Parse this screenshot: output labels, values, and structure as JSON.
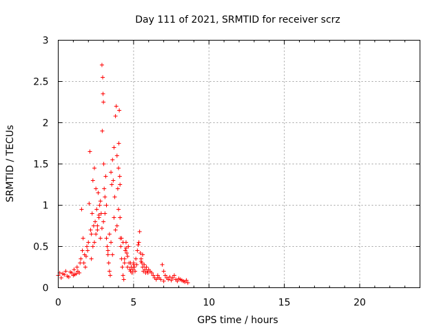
{
  "chart_data": {
    "type": "scatter",
    "title": "Day 111 of 2021, SRMTID for receiver scrz",
    "xlabel": "GPS time / hours",
    "ylabel": "SRMTID / TECUs",
    "xlim": [
      0,
      24
    ],
    "ylim": [
      0,
      3
    ],
    "xticks": [
      0,
      5,
      10,
      15,
      20
    ],
    "xtick_labels": [
      "0",
      "5",
      "10",
      "15",
      "20"
    ],
    "yticks": [
      0,
      0.5,
      1,
      1.5,
      2,
      2.5,
      3
    ],
    "ytick_labels": [
      "0",
      "0.5",
      "1",
      "1.5",
      "2",
      "2.5",
      "3"
    ],
    "grid": true,
    "marker": "+",
    "series": [
      {
        "name": "SRMTID",
        "color": "#ff0000",
        "x": [
          0.0,
          0.1,
          0.2,
          0.3,
          0.4,
          0.5,
          0.6,
          0.7,
          0.8,
          0.9,
          1.0,
          1.05,
          1.1,
          1.2,
          1.25,
          1.3,
          1.4,
          1.45,
          1.5,
          1.55,
          1.6,
          1.65,
          1.7,
          1.75,
          1.8,
          1.85,
          1.9,
          1.95,
          2.0,
          2.05,
          2.1,
          2.15,
          2.2,
          2.25,
          2.3,
          2.35,
          2.4,
          2.45,
          2.5,
          2.55,
          2.6,
          2.65,
          2.7,
          2.75,
          2.8,
          2.85,
          2.9,
          2.92,
          2.95,
          2.97,
          3.0,
          3.02,
          3.05,
          3.1,
          3.15,
          3.2,
          3.25,
          3.3,
          3.35,
          3.4,
          3.45,
          3.5,
          3.55,
          3.6,
          3.65,
          3.7,
          3.75,
          3.8,
          3.85,
          3.9,
          3.95,
          4.0,
          4.02,
          4.05,
          4.08,
          4.1,
          4.12,
          4.15,
          4.2,
          4.25,
          4.3,
          4.35,
          4.4,
          4.45,
          4.5,
          4.55,
          4.6,
          4.65,
          4.7,
          4.75,
          4.8,
          4.85,
          4.9,
          4.95,
          5.0,
          5.05,
          5.1,
          5.15,
          5.2,
          5.25,
          5.3,
          5.35,
          5.4,
          5.45,
          5.5,
          5.55,
          5.6,
          5.65,
          5.7,
          5.75,
          5.8,
          5.85,
          5.9,
          5.95,
          6.0,
          6.1,
          6.2,
          6.3,
          6.4,
          6.5,
          6.6,
          6.7,
          6.8,
          6.9,
          7.0,
          7.1,
          7.2,
          7.3,
          7.4,
          7.5,
          7.6,
          7.7,
          7.8,
          7.9,
          8.0,
          8.1,
          8.2,
          8.3,
          8.4,
          8.5,
          8.6,
          2.2,
          2.4,
          2.6,
          2.8,
          3.0,
          3.2,
          3.4,
          3.6,
          3.8,
          4.0,
          4.2,
          4.4,
          4.6,
          4.8,
          5.0,
          2.3,
          2.5,
          2.7,
          2.9,
          3.1,
          3.3,
          3.5,
          3.7,
          3.9,
          4.1,
          4.3,
          4.5,
          5.5,
          5.6,
          6.6,
          7.0
        ],
        "y": [
          0.15,
          0.18,
          0.12,
          0.17,
          0.16,
          0.2,
          0.14,
          0.13,
          0.19,
          0.18,
          0.15,
          0.22,
          0.16,
          0.17,
          0.25,
          0.2,
          0.18,
          0.3,
          0.35,
          0.95,
          0.45,
          0.6,
          0.3,
          0.4,
          0.25,
          0.38,
          0.5,
          0.45,
          0.55,
          1.02,
          1.65,
          0.7,
          0.65,
          0.9,
          1.3,
          0.75,
          1.45,
          0.8,
          1.2,
          0.95,
          0.7,
          1.15,
          0.85,
          1.0,
          1.05,
          0.9,
          2.7,
          1.9,
          2.55,
          2.35,
          2.25,
          1.5,
          1.2,
          0.9,
          1.35,
          0.6,
          0.5,
          0.4,
          0.3,
          0.2,
          0.15,
          1.4,
          1.25,
          1.55,
          1.3,
          1.7,
          1.1,
          2.08,
          2.2,
          1.6,
          1.2,
          1.45,
          1.75,
          2.15,
          1.35,
          0.85,
          0.6,
          0.5,
          0.35,
          0.25,
          0.15,
          0.1,
          0.3,
          0.45,
          0.55,
          0.42,
          0.38,
          0.5,
          0.3,
          0.22,
          0.3,
          0.25,
          0.18,
          0.22,
          0.3,
          0.25,
          0.2,
          0.35,
          0.28,
          0.45,
          0.52,
          0.55,
          0.68,
          0.42,
          0.35,
          0.3,
          0.25,
          0.2,
          0.28,
          0.22,
          0.18,
          0.25,
          0.2,
          0.18,
          0.22,
          0.2,
          0.18,
          0.15,
          0.12,
          0.1,
          0.15,
          0.12,
          0.1,
          0.28,
          0.2,
          0.15,
          0.12,
          0.1,
          0.13,
          0.09,
          0.12,
          0.15,
          0.1,
          0.08,
          0.11,
          0.1,
          0.09,
          0.08,
          0.07,
          0.09,
          0.06,
          0.35,
          0.55,
          0.75,
          0.6,
          0.8,
          1.0,
          0.65,
          0.4,
          0.7,
          0.95,
          0.6,
          0.35,
          0.25,
          0.2,
          0.28,
          0.5,
          0.65,
          0.88,
          0.72,
          1.1,
          0.45,
          0.55,
          0.85,
          0.75,
          1.25,
          0.55,
          0.48,
          0.32,
          0.4,
          0.12,
          0.08
        ]
      }
    ]
  }
}
